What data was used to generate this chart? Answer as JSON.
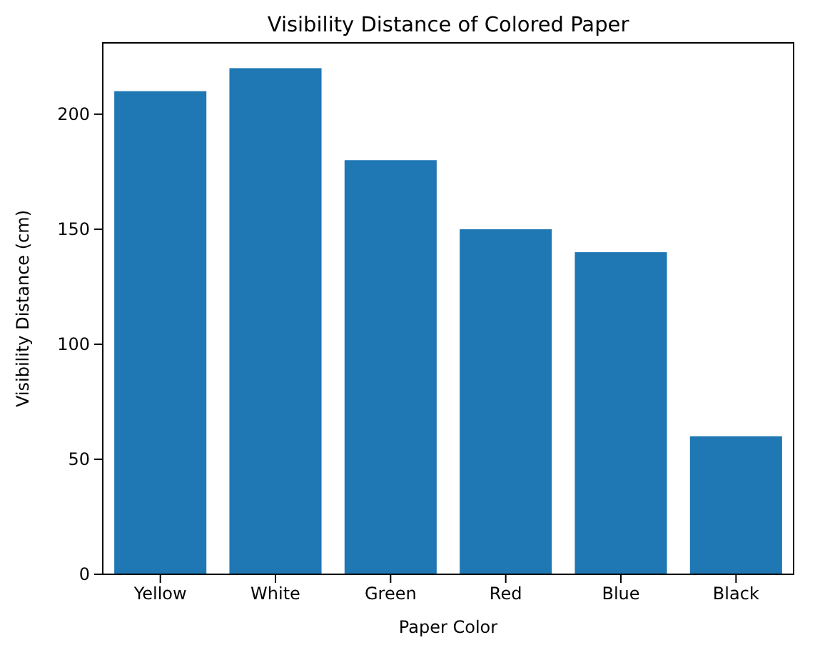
{
  "chart_data": {
    "type": "bar",
    "title": "Visibility Distance of Colored Paper",
    "xlabel": "Paper Color",
    "ylabel": "Visibility Distance (cm)",
    "categories": [
      "Yellow",
      "White",
      "Green",
      "Red",
      "Blue",
      "Black"
    ],
    "values": [
      210,
      220,
      180,
      150,
      140,
      60
    ],
    "color": "#1f77b4",
    "ylim": [
      0,
      231
    ],
    "yticks": [
      0,
      50,
      100,
      150,
      200
    ],
    "grid": false
  }
}
